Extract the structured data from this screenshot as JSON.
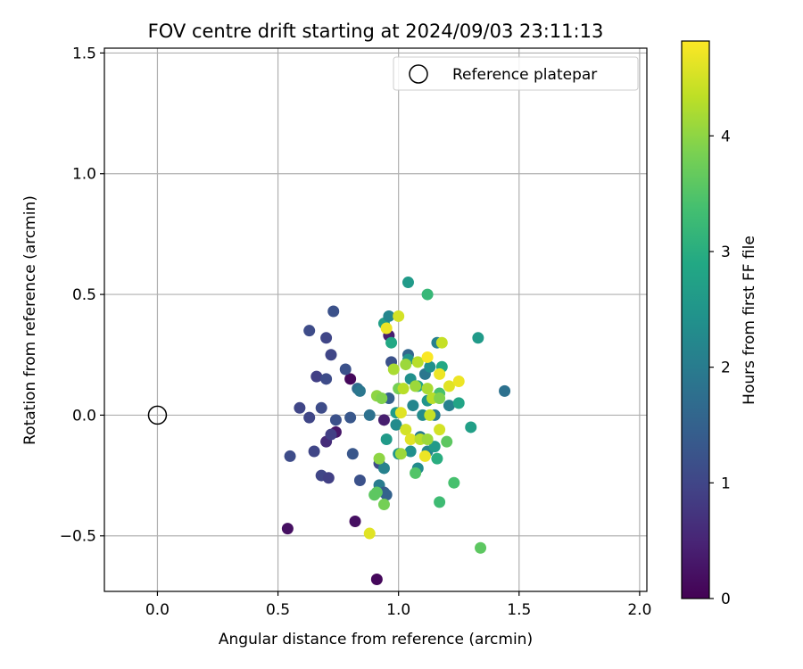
{
  "chart_data": {
    "type": "scatter",
    "title": "FOV centre drift starting at 2024/09/03 23:11:13",
    "xlabel": "Angular distance from reference (arcmin)",
    "ylabel": "Rotation from reference (arcmin)",
    "xlim": [
      -0.22,
      2.03
    ],
    "ylim": [
      -0.73,
      1.52
    ],
    "xticks": [
      0.0,
      0.5,
      1.0,
      1.5,
      2.0
    ],
    "xtick_labels": [
      "0.0",
      "0.5",
      "1.0",
      "1.5",
      "2.0"
    ],
    "yticks": [
      -0.5,
      0.0,
      0.5,
      1.0,
      1.5
    ],
    "ytick_labels": [
      "−0.5",
      "0.0",
      "0.5",
      "1.0",
      "1.5"
    ],
    "grid": true,
    "legend": {
      "location": "top-right",
      "entries": [
        "Reference platepar"
      ]
    },
    "reference_point": {
      "x": 0.0,
      "y": 0.0,
      "label": "Reference platepar",
      "marker": "open-circle"
    },
    "colorbar": {
      "label": "Hours from first FF file",
      "min": 0.0,
      "max": 4.82,
      "ticks": [
        0,
        1,
        2,
        3,
        4
      ],
      "tick_labels": [
        "0",
        "1",
        "2",
        "3",
        "4"
      ],
      "colormap": "viridis"
    },
    "points": [
      {
        "x": 0.54,
        "y": -0.47,
        "t": 0.2
      },
      {
        "x": 0.91,
        "y": -0.68,
        "t": 0.1
      },
      {
        "x": 0.82,
        "y": -0.44,
        "t": 0.2
      },
      {
        "x": 0.8,
        "y": 0.15,
        "t": 0.1
      },
      {
        "x": 0.74,
        "y": -0.07,
        "t": 0.3
      },
      {
        "x": 0.7,
        "y": -0.11,
        "t": 0.6
      },
      {
        "x": 0.94,
        "y": -0.02,
        "t": 0.4
      },
      {
        "x": 0.96,
        "y": 0.33,
        "t": 0.4
      },
      {
        "x": 0.73,
        "y": 0.43,
        "t": 1.2
      },
      {
        "x": 0.63,
        "y": 0.35,
        "t": 1.1
      },
      {
        "x": 0.7,
        "y": 0.32,
        "t": 1.0
      },
      {
        "x": 0.72,
        "y": 0.25,
        "t": 1.0
      },
      {
        "x": 0.66,
        "y": 0.16,
        "t": 0.9
      },
      {
        "x": 0.7,
        "y": 0.15,
        "t": 1.1
      },
      {
        "x": 0.78,
        "y": 0.19,
        "t": 1.2
      },
      {
        "x": 0.59,
        "y": 0.03,
        "t": 1.0
      },
      {
        "x": 0.63,
        "y": -0.01,
        "t": 1.0
      },
      {
        "x": 0.68,
        "y": 0.03,
        "t": 1.1
      },
      {
        "x": 0.74,
        "y": -0.02,
        "t": 1.2
      },
      {
        "x": 0.8,
        "y": -0.01,
        "t": 1.3
      },
      {
        "x": 0.72,
        "y": -0.08,
        "t": 0.9
      },
      {
        "x": 0.65,
        "y": -0.15,
        "t": 1.0
      },
      {
        "x": 0.55,
        "y": -0.17,
        "t": 1.1
      },
      {
        "x": 0.68,
        "y": -0.25,
        "t": 1.0
      },
      {
        "x": 0.71,
        "y": -0.26,
        "t": 0.9
      },
      {
        "x": 0.81,
        "y": -0.16,
        "t": 1.3
      },
      {
        "x": 0.84,
        "y": -0.27,
        "t": 1.2
      },
      {
        "x": 0.83,
        "y": 0.11,
        "t": 1.7
      },
      {
        "x": 0.84,
        "y": 0.1,
        "t": 1.9
      },
      {
        "x": 0.88,
        "y": 0.0,
        "t": 1.8
      },
      {
        "x": 0.92,
        "y": -0.2,
        "t": 1.1
      },
      {
        "x": 0.92,
        "y": -0.29,
        "t": 2.0
      },
      {
        "x": 0.94,
        "y": -0.32,
        "t": 1.4
      },
      {
        "x": 0.95,
        "y": -0.33,
        "t": 1.5
      },
      {
        "x": 0.94,
        "y": -0.22,
        "t": 2.1
      },
      {
        "x": 0.94,
        "y": 0.38,
        "t": 2.7
      },
      {
        "x": 0.96,
        "y": 0.41,
        "t": 2.2
      },
      {
        "x": 0.97,
        "y": 0.3,
        "t": 2.9
      },
      {
        "x": 0.97,
        "y": 0.22,
        "t": 1.2
      },
      {
        "x": 0.96,
        "y": 0.07,
        "t": 1.5
      },
      {
        "x": 0.99,
        "y": 0.01,
        "t": 2.6
      },
      {
        "x": 0.99,
        "y": -0.04,
        "t": 2.3
      },
      {
        "x": 1.04,
        "y": 0.55,
        "t": 2.6
      },
      {
        "x": 1.12,
        "y": 0.5,
        "t": 3.2
      },
      {
        "x": 1.04,
        "y": 0.25,
        "t": 1.6
      },
      {
        "x": 1.04,
        "y": 0.23,
        "t": 2.5
      },
      {
        "x": 1.05,
        "y": 0.15,
        "t": 2.4
      },
      {
        "x": 1.08,
        "y": 0.12,
        "t": 2.8
      },
      {
        "x": 1.11,
        "y": 0.17,
        "t": 1.9
      },
      {
        "x": 1.13,
        "y": 0.2,
        "t": 2.4
      },
      {
        "x": 1.16,
        "y": 0.3,
        "t": 2.1
      },
      {
        "x": 1.18,
        "y": 0.2,
        "t": 2.9
      },
      {
        "x": 1.06,
        "y": 0.04,
        "t": 2.2
      },
      {
        "x": 1.1,
        "y": 0.0,
        "t": 2.3
      },
      {
        "x": 1.12,
        "y": 0.06,
        "t": 2.5
      },
      {
        "x": 1.15,
        "y": 0.0,
        "t": 2.0
      },
      {
        "x": 1.17,
        "y": 0.09,
        "t": 3.4
      },
      {
        "x": 1.21,
        "y": 0.04,
        "t": 2.1
      },
      {
        "x": 1.25,
        "y": 0.05,
        "t": 2.8
      },
      {
        "x": 1.3,
        "y": -0.05,
        "t": 2.7
      },
      {
        "x": 1.33,
        "y": 0.32,
        "t": 2.6
      },
      {
        "x": 1.44,
        "y": 0.1,
        "t": 1.8
      },
      {
        "x": 0.95,
        "y": -0.1,
        "t": 2.6
      },
      {
        "x": 1.0,
        "y": -0.16,
        "t": 2.5
      },
      {
        "x": 1.05,
        "y": -0.15,
        "t": 2.4
      },
      {
        "x": 1.08,
        "y": -0.22,
        "t": 2.3
      },
      {
        "x": 1.12,
        "y": -0.15,
        "t": 2.2
      },
      {
        "x": 1.15,
        "y": -0.13,
        "t": 2.6
      },
      {
        "x": 1.16,
        "y": -0.18,
        "t": 3.0
      },
      {
        "x": 1.09,
        "y": -0.09,
        "t": 2.0
      },
      {
        "x": 1.07,
        "y": -0.24,
        "t": 3.5
      },
      {
        "x": 1.17,
        "y": -0.36,
        "t": 3.3
      },
      {
        "x": 1.23,
        "y": -0.28,
        "t": 3.4
      },
      {
        "x": 1.34,
        "y": -0.55,
        "t": 3.6
      },
      {
        "x": 0.91,
        "y": -0.32,
        "t": 3.6
      },
      {
        "x": 0.92,
        "y": -0.18,
        "t": 4.0
      },
      {
        "x": 0.94,
        "y": -0.37,
        "t": 3.8
      },
      {
        "x": 0.88,
        "y": -0.49,
        "t": 4.6
      },
      {
        "x": 0.95,
        "y": 0.36,
        "t": 4.7
      },
      {
        "x": 1.0,
        "y": 0.41,
        "t": 4.5
      },
      {
        "x": 0.98,
        "y": 0.19,
        "t": 4.2
      },
      {
        "x": 1.03,
        "y": 0.21,
        "t": 4.1
      },
      {
        "x": 1.08,
        "y": 0.22,
        "t": 4.3
      },
      {
        "x": 1.12,
        "y": 0.24,
        "t": 4.8
      },
      {
        "x": 1.18,
        "y": 0.3,
        "t": 4.4
      },
      {
        "x": 1.17,
        "y": 0.17,
        "t": 4.7
      },
      {
        "x": 1.21,
        "y": 0.12,
        "t": 4.6
      },
      {
        "x": 1.25,
        "y": 0.14,
        "t": 4.7
      },
      {
        "x": 0.91,
        "y": 0.08,
        "t": 4.0
      },
      {
        "x": 0.93,
        "y": 0.07,
        "t": 3.9
      },
      {
        "x": 1.0,
        "y": 0.11,
        "t": 3.8
      },
      {
        "x": 1.02,
        "y": 0.11,
        "t": 4.3
      },
      {
        "x": 1.07,
        "y": 0.12,
        "t": 4.1
      },
      {
        "x": 1.12,
        "y": 0.11,
        "t": 4.2
      },
      {
        "x": 1.14,
        "y": 0.07,
        "t": 4.3
      },
      {
        "x": 1.17,
        "y": 0.07,
        "t": 3.9
      },
      {
        "x": 1.13,
        "y": 0.0,
        "t": 4.4
      },
      {
        "x": 1.01,
        "y": 0.01,
        "t": 4.6
      },
      {
        "x": 1.03,
        "y": -0.06,
        "t": 4.5
      },
      {
        "x": 1.05,
        "y": -0.1,
        "t": 4.6
      },
      {
        "x": 1.09,
        "y": -0.1,
        "t": 4.3
      },
      {
        "x": 1.12,
        "y": -0.1,
        "t": 4.1
      },
      {
        "x": 1.17,
        "y": -0.06,
        "t": 4.5
      },
      {
        "x": 1.2,
        "y": -0.11,
        "t": 3.6
      },
      {
        "x": 1.11,
        "y": -0.17,
        "t": 4.7
      },
      {
        "x": 1.01,
        "y": -0.16,
        "t": 4.1
      },
      {
        "x": 0.9,
        "y": -0.33,
        "t": 3.6
      }
    ]
  }
}
